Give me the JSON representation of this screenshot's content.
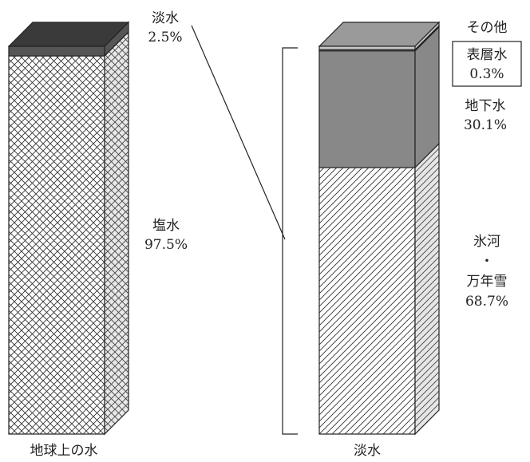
{
  "chart_data": [
    {
      "type": "bar",
      "stacked": true,
      "style": "3d-column",
      "category": "地球上の水",
      "ylim": [
        0,
        100
      ],
      "unit": "%",
      "segments": [
        {
          "name": "塩水",
          "value": 97.5,
          "label": "塩水",
          "value_label": "97.5%",
          "pattern": "crosshatch"
        },
        {
          "name": "淡水",
          "value": 2.5,
          "label": "淡水",
          "value_label": "2.5%",
          "color": "#555555"
        }
      ]
    },
    {
      "type": "bar",
      "stacked": true,
      "style": "3d-column",
      "category": "淡水",
      "ylim": [
        0,
        100
      ],
      "unit": "%",
      "segments": [
        {
          "name": "氷河・万年雪",
          "value": 68.7,
          "label_lines": [
            "氷河",
            "・",
            "万年雪"
          ],
          "value_label": "68.7%",
          "pattern": "diagonal"
        },
        {
          "name": "地下水",
          "value": 30.1,
          "label": "地下水",
          "value_label": "30.1%",
          "color": "#888888"
        },
        {
          "name": "表層水",
          "value": 0.3,
          "label": "表層水",
          "value_label": "0.3%",
          "color": "#ffffff",
          "boxed": true
        },
        {
          "name": "その他",
          "value": 0.9,
          "label": "その他",
          "color": "#c8c8c8"
        }
      ]
    }
  ],
  "colors": {
    "top_face": "#3a3a3a",
    "top_face_right": "#9a9a9a",
    "outline": "#222222"
  }
}
